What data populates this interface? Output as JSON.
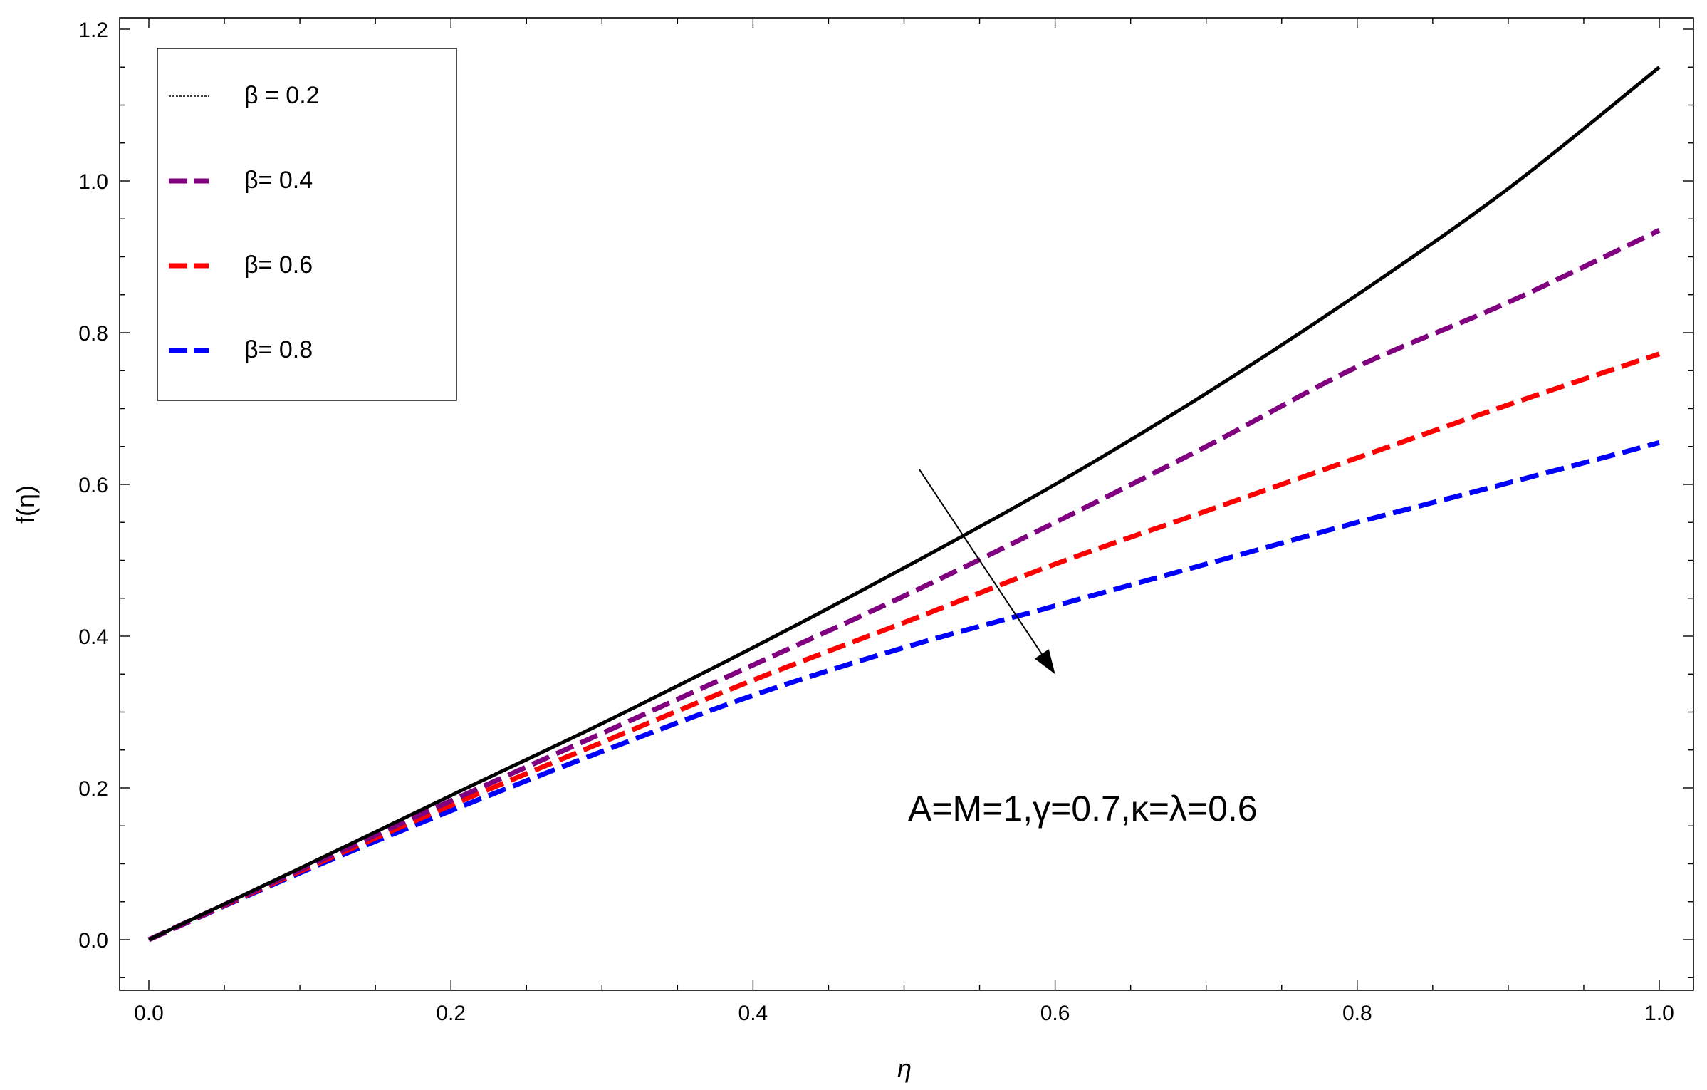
{
  "chart_data": {
    "type": "line",
    "xlabel": "η",
    "ylabel": "f(η)",
    "xlim": [
      0.0,
      1.0
    ],
    "ylim": [
      -0.06,
      1.22
    ],
    "x_ticks": [
      "0.0",
      "0.2",
      "0.4",
      "0.6",
      "0.8",
      "1.0"
    ],
    "y_ticks": [
      "0.0",
      "0.2",
      "0.4",
      "0.6",
      "0.8",
      "1.0",
      "1.2"
    ],
    "annotation": "A=M=1,γ=0.7,κ=λ=0.6",
    "arrow": {
      "from": [
        0.51,
        0.62
      ],
      "to": [
        0.6,
        0.35
      ]
    },
    "legend_position": "top-left",
    "x": [
      0.0,
      0.1,
      0.2,
      0.3,
      0.4,
      0.5,
      0.6,
      0.7,
      0.8,
      0.9,
      1.0
    ],
    "series": [
      {
        "name": "β = 0.2",
        "legend_label": "β = 0.2",
        "color": "#000000",
        "dash": "solid",
        "legend_dash": "dotted",
        "values": [
          0.0,
          0.094,
          0.19,
          0.285,
          0.385,
          0.49,
          0.6,
          0.72,
          0.85,
          0.99,
          1.15
        ]
      },
      {
        "name": "β = 0.4",
        "legend_label": "β= 0.4",
        "color": "#800080",
        "dash": "dashed",
        "values": [
          0.0,
          0.092,
          0.183,
          0.272,
          0.362,
          0.453,
          0.55,
          0.65,
          0.755,
          0.84,
          0.935
        ]
      },
      {
        "name": "β = 0.6",
        "legend_label": "β= 0.6",
        "color": "#ff0000",
        "dash": "dashed",
        "values": [
          0.0,
          0.09,
          0.177,
          0.26,
          0.342,
          0.418,
          0.495,
          0.565,
          0.635,
          0.705,
          0.772
        ]
      },
      {
        "name": "β = 0.8",
        "legend_label": "β= 0.8",
        "color": "#0000ff",
        "dash": "dashed",
        "values": [
          0.0,
          0.088,
          0.17,
          0.248,
          0.322,
          0.385,
          0.44,
          0.495,
          0.55,
          0.602,
          0.655
        ]
      }
    ]
  }
}
